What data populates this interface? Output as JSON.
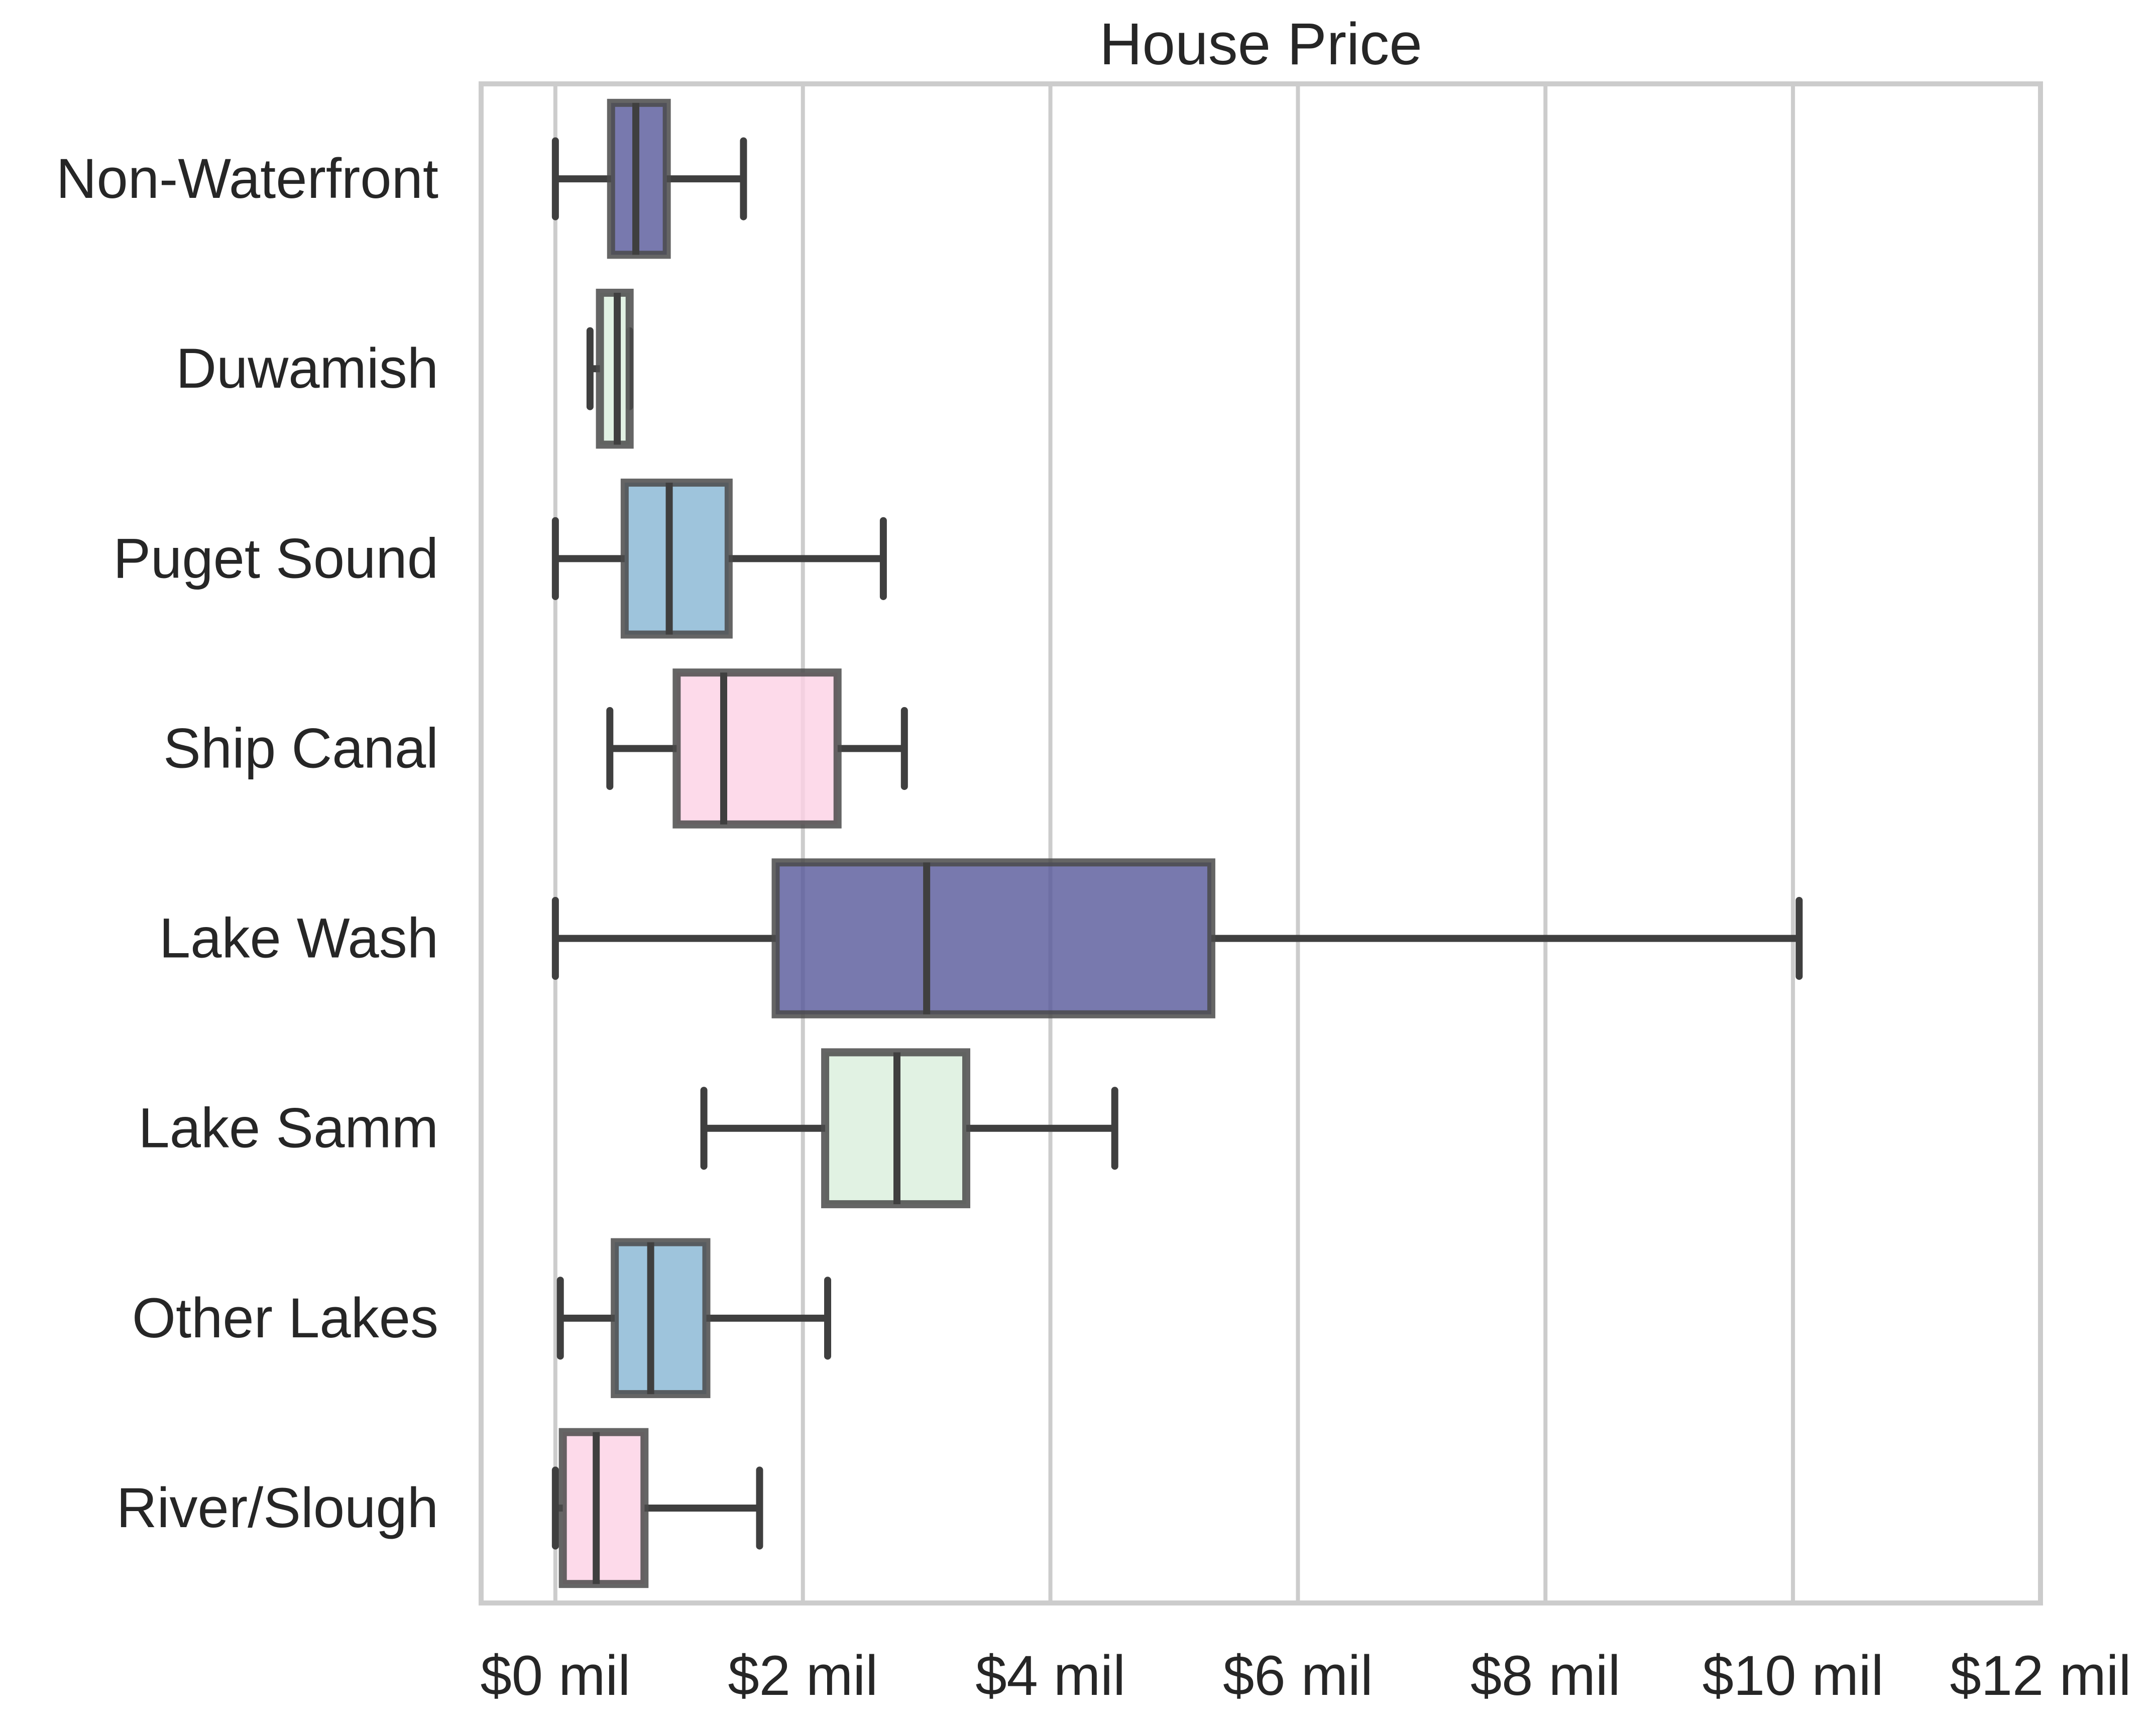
{
  "chart_data": {
    "type": "boxplot",
    "title": "House Price",
    "xlabel": "",
    "ylabel": "",
    "xlim": [
      -0.6,
      12
    ],
    "x_ticks": [
      {
        "value": 0,
        "label": "$0 mil"
      },
      {
        "value": 2,
        "label": "$2 mil"
      },
      {
        "value": 4,
        "label": "$4 mil"
      },
      {
        "value": 6,
        "label": "$6 mil"
      },
      {
        "value": 8,
        "label": "$8 mil"
      },
      {
        "value": 10,
        "label": "$10 mil"
      },
      {
        "value": 12,
        "label": "$12 mil"
      }
    ],
    "grid": "vertical",
    "orientation": "horizontal",
    "categories": [
      "Non-Waterfront",
      "Duwamish",
      "Puget Sound",
      "Ship Canal",
      "Lake Wash",
      "Lake Samm",
      "Other Lakes",
      "River/Slough"
    ],
    "boxes": [
      {
        "category": "Non-Waterfront",
        "min": 0.0,
        "q1": 0.45,
        "median": 0.65,
        "q3": 0.9,
        "max": 1.52,
        "color": "#56579a"
      },
      {
        "category": "Duwamish",
        "min": 0.28,
        "q1": 0.36,
        "median": 0.5,
        "q3": 0.6,
        "max": 0.6,
        "color": "#d9efdc"
      },
      {
        "category": "Puget Sound",
        "min": 0.0,
        "q1": 0.56,
        "median": 0.92,
        "q3": 1.4,
        "max": 2.65,
        "color": "#86b5d3"
      },
      {
        "category": "Ship Canal",
        "min": 0.44,
        "q1": 0.98,
        "median": 1.36,
        "q3": 2.28,
        "max": 2.82,
        "color": "#fcd1e5"
      },
      {
        "category": "Lake Wash",
        "min": 0.0,
        "q1": 1.78,
        "median": 3.0,
        "q3": 5.3,
        "max": 10.05,
        "color": "#56579a"
      },
      {
        "category": "Lake Samm",
        "min": 1.2,
        "q1": 2.18,
        "median": 2.76,
        "q3": 3.32,
        "max": 4.52,
        "color": "#d9efdc"
      },
      {
        "category": "Other Lakes",
        "min": 0.04,
        "q1": 0.48,
        "median": 0.77,
        "q3": 1.22,
        "max": 2.2,
        "color": "#86b5d3"
      },
      {
        "category": "River/Slough",
        "min": 0.0,
        "q1": 0.06,
        "median": 0.33,
        "q3": 0.72,
        "max": 1.65,
        "color": "#fcd1e5"
      }
    ]
  }
}
